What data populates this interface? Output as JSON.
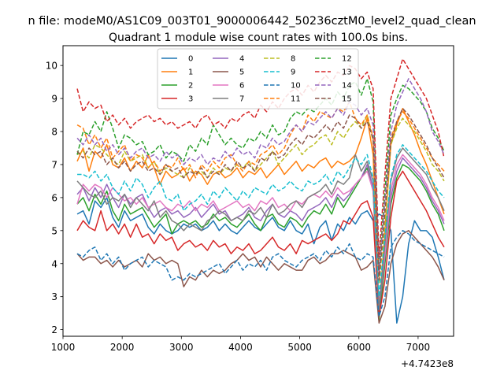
{
  "chart_data": {
    "type": "line",
    "suptitle": "n file: modeM0/AS1C09_003T01_9000006442_50236cztM0_level2_quad_clean",
    "title": "Quadrant 1 module wise count rates with 100.0s bins.",
    "xlabel": "",
    "ylabel": "",
    "x_offset_label": "+4.7423e8",
    "xlim": [
      1000,
      7600
    ],
    "ylim": [
      1.8,
      10.6
    ],
    "x_ticks": [
      1000,
      2000,
      3000,
      4000,
      5000,
      6000,
      7000
    ],
    "x_tick_labels": [
      "1000",
      "2000",
      "3000",
      "4000",
      "5000",
      "6000",
      "7000"
    ],
    "y_ticks": [
      2,
      3,
      4,
      5,
      6,
      7,
      8,
      9,
      10
    ],
    "y_tick_labels": [
      "2",
      "3",
      "4",
      "5",
      "6",
      "7",
      "8",
      "9",
      "10"
    ],
    "grid": false,
    "legend_position": "top-center",
    "legend_columns": 4,
    "x_start": 1240,
    "x_step": 100,
    "series": [
      {
        "name": "0",
        "color": "#1f77b4",
        "dash": "solid",
        "values": [
          5.5,
          5.6,
          5.2,
          5.9,
          5.7,
          6.0,
          5.4,
          5.1,
          5.6,
          5.3,
          5.4,
          5.5,
          5.1,
          4.9,
          5.2,
          5.0,
          4.9,
          5.0,
          5.2,
          5.1,
          5.2,
          5.0,
          5.1,
          5.3,
          5.0,
          5.2,
          5.0,
          4.9,
          5.1,
          5.3,
          5.1,
          5.0,
          5.2,
          5.4,
          5.1,
          5.0,
          5.3,
          5.0,
          4.9,
          5.2,
          4.6,
          5.1,
          5.3,
          4.7,
          5.2,
          5.0,
          5.4,
          5.2,
          5.5,
          5.6,
          5.3,
          5.5,
          5.4,
          5.0,
          2.2,
          3.0,
          4.6,
          5.3,
          5.0,
          5.0,
          4.8,
          4.2,
          3.5
        ]
      },
      {
        "name": "1",
        "color": "#ff7f0e",
        "dash": "solid",
        "values": [
          7.1,
          7.5,
          6.8,
          7.4,
          7.2,
          7.6,
          7.0,
          6.9,
          7.2,
          6.8,
          7.1,
          6.9,
          7.3,
          6.9,
          6.4,
          6.8,
          6.6,
          6.7,
          6.9,
          6.5,
          6.8,
          6.7,
          6.4,
          6.7,
          6.8,
          6.6,
          6.7,
          6.9,
          6.6,
          6.8,
          6.7,
          6.9,
          6.6,
          6.8,
          7.0,
          6.7,
          6.9,
          7.1,
          6.8,
          7.0,
          6.9,
          7.1,
          7.2,
          6.9,
          7.1,
          7.0,
          7.1,
          7.3,
          7.8,
          8.4,
          7.3,
          2.5,
          5.0,
          7.6,
          8.2,
          8.7,
          8.3,
          7.9,
          7.4,
          7.0,
          6.5,
          6.0,
          5.5
        ]
      },
      {
        "name": "2",
        "color": "#2ca02c",
        "dash": "solid",
        "values": [
          5.8,
          6.0,
          5.6,
          6.1,
          5.8,
          6.2,
          5.6,
          5.3,
          5.8,
          5.5,
          5.6,
          5.7,
          5.4,
          5.1,
          5.3,
          5.5,
          4.9,
          5.2,
          5.3,
          5.2,
          5.3,
          5.1,
          5.2,
          5.5,
          5.3,
          5.4,
          5.2,
          5.1,
          5.3,
          5.5,
          5.2,
          5.0,
          5.4,
          5.5,
          5.2,
          5.1,
          5.4,
          5.3,
          5.1,
          5.4,
          5.6,
          5.5,
          5.8,
          5.5,
          6.0,
          5.7,
          6.0,
          6.3,
          6.6,
          6.9,
          6.2,
          2.3,
          4.0,
          5.8,
          6.6,
          7.0,
          6.9,
          6.7,
          6.5,
          6.2,
          5.8,
          5.5,
          5.0
        ]
      },
      {
        "name": "3",
        "color": "#d62728",
        "dash": "solid",
        "values": [
          5.0,
          5.3,
          5.1,
          5.0,
          5.6,
          5.0,
          5.2,
          4.9,
          5.2,
          4.8,
          5.2,
          4.8,
          4.9,
          4.6,
          4.9,
          4.7,
          4.8,
          4.4,
          4.6,
          4.7,
          4.5,
          4.6,
          4.4,
          4.7,
          4.5,
          4.6,
          4.3,
          4.5,
          4.4,
          4.6,
          4.3,
          4.4,
          4.6,
          4.8,
          4.5,
          4.4,
          4.6,
          4.3,
          4.7,
          4.6,
          4.7,
          4.8,
          4.9,
          4.7,
          4.9,
          5.3,
          5.2,
          5.5,
          5.8,
          5.9,
          5.4,
          2.4,
          3.5,
          5.4,
          6.5,
          6.8,
          6.5,
          6.2,
          5.9,
          5.6,
          5.2,
          4.8,
          4.5
        ]
      },
      {
        "name": "4",
        "color": "#9467bd",
        "dash": "solid",
        "values": [
          6.1,
          6.3,
          5.9,
          6.3,
          6.0,
          6.4,
          6.0,
          5.7,
          6.1,
          5.8,
          6.0,
          6.1,
          5.7,
          5.4,
          5.6,
          5.7,
          5.5,
          5.6,
          5.4,
          5.5,
          5.7,
          5.4,
          5.6,
          5.8,
          5.5,
          5.6,
          5.3,
          5.4,
          5.5,
          5.7,
          5.4,
          5.3,
          5.6,
          5.8,
          5.5,
          5.4,
          5.6,
          5.5,
          5.3,
          5.6,
          5.7,
          5.8,
          6.0,
          5.7,
          6.1,
          5.9,
          6.1,
          6.4,
          6.6,
          7.0,
          6.3,
          2.6,
          4.2,
          6.0,
          6.8,
          7.2,
          7.0,
          6.8,
          6.6,
          6.3,
          5.9,
          5.6,
          5.2
        ]
      },
      {
        "name": "5",
        "color": "#8c564b",
        "dash": "solid",
        "values": [
          4.3,
          4.1,
          4.2,
          4.2,
          4.0,
          4.1,
          3.9,
          4.1,
          3.9,
          4.0,
          4.1,
          3.9,
          4.3,
          4.1,
          4.2,
          4.0,
          4.1,
          4.0,
          3.3,
          3.6,
          3.5,
          3.8,
          3.6,
          3.8,
          3.7,
          3.8,
          4.0,
          4.1,
          4.3,
          4.1,
          4.2,
          3.9,
          4.2,
          4.0,
          3.8,
          4.0,
          3.9,
          3.8,
          3.8,
          4.1,
          4.2,
          4.0,
          4.1,
          4.3,
          4.3,
          4.4,
          4.3,
          4.2,
          3.8,
          3.9,
          4.1,
          2.2,
          2.7,
          4.0,
          4.6,
          4.9,
          5.0,
          4.8,
          4.6,
          4.4,
          4.2,
          3.9,
          3.5
        ]
      },
      {
        "name": "6",
        "color": "#e377c2",
        "dash": "solid",
        "values": [
          5.8,
          6.4,
          6.2,
          6.4,
          6.3,
          6.0,
          6.3,
          6.1,
          5.9,
          6.0,
          5.8,
          6.0,
          5.7,
          5.8,
          5.9,
          5.7,
          5.6,
          5.8,
          5.7,
          5.9,
          5.6,
          5.8,
          5.7,
          5.9,
          5.6,
          5.7,
          5.8,
          5.9,
          5.7,
          5.8,
          5.6,
          5.9,
          5.8,
          6.0,
          5.7,
          5.8,
          5.6,
          5.9,
          5.8,
          6.0,
          6.1,
          6.0,
          6.2,
          6.0,
          6.3,
          6.1,
          6.2,
          6.4,
          6.6,
          6.8,
          6.2,
          2.8,
          4.3,
          6.2,
          7.0,
          7.3,
          7.1,
          6.9,
          6.7,
          6.4,
          6.0,
          5.7,
          5.3
        ]
      },
      {
        "name": "7",
        "color": "#7f7f7f",
        "dash": "solid",
        "values": [
          6.5,
          6.3,
          6.1,
          6.0,
          6.2,
          5.8,
          6.0,
          5.9,
          6.1,
          5.7,
          6.0,
          5.8,
          5.6,
          5.9,
          5.4,
          5.6,
          5.3,
          5.2,
          5.0,
          5.2,
          5.1,
          5.0,
          5.3,
          5.4,
          5.6,
          5.5,
          5.3,
          5.4,
          5.3,
          5.6,
          5.5,
          5.7,
          5.4,
          5.8,
          5.5,
          5.6,
          5.8,
          5.9,
          5.7,
          6.0,
          6.1,
          6.2,
          6.4,
          6.1,
          6.5,
          6.4,
          6.6,
          7.3,
          6.8,
          7.1,
          6.5,
          2.6,
          4.6,
          6.5,
          7.2,
          7.5,
          7.3,
          7.1,
          6.9,
          6.7,
          6.3,
          6.0,
          5.6
        ]
      },
      {
        "name": "8",
        "color": "#bcbd22",
        "dash": "dashed",
        "values": [
          7.3,
          7.4,
          7.2,
          7.6,
          7.5,
          7.3,
          7.1,
          7.0,
          7.4,
          7.1,
          7.2,
          7.3,
          6.9,
          7.1,
          6.7,
          6.9,
          6.8,
          6.7,
          6.6,
          6.9,
          6.7,
          6.8,
          6.6,
          6.9,
          6.7,
          6.9,
          6.8,
          7.0,
          6.9,
          7.1,
          6.8,
          7.0,
          7.2,
          7.4,
          7.0,
          7.2,
          7.4,
          7.6,
          7.3,
          7.5,
          7.6,
          7.8,
          7.9,
          7.6,
          8.0,
          7.8,
          8.1,
          8.3,
          8.1,
          8.5,
          7.7,
          3.4,
          5.2,
          7.6,
          8.1,
          8.4,
          8.2,
          8.0,
          7.7,
          7.4,
          7.0,
          6.8,
          6.5
        ]
      },
      {
        "name": "9",
        "color": "#17becf",
        "dash": "dashed",
        "values": [
          6.7,
          6.7,
          6.6,
          6.8,
          6.5,
          6.7,
          6.3,
          6.1,
          6.5,
          6.2,
          6.6,
          6.4,
          6.0,
          6.3,
          6.5,
          6.0,
          5.9,
          6.1,
          5.6,
          5.8,
          5.9,
          6.1,
          5.8,
          6.2,
          6.0,
          6.3,
          6.1,
          5.9,
          6.2,
          6.0,
          6.3,
          6.2,
          6.1,
          6.4,
          6.2,
          6.3,
          6.5,
          6.3,
          6.2,
          6.5,
          6.4,
          6.5,
          6.7,
          6.4,
          6.8,
          6.6,
          6.9,
          7.2,
          7.0,
          7.3,
          6.6,
          3.0,
          4.8,
          6.6,
          7.3,
          7.6,
          7.4,
          7.2,
          7.0,
          6.8,
          6.5,
          6.2,
          6.0
        ]
      },
      {
        "name": "10",
        "color": "#1f77b4",
        "dash": "dashed",
        "values": [
          4.3,
          4.2,
          4.4,
          4.5,
          4.1,
          4.3,
          4.0,
          4.2,
          3.8,
          4.0,
          4.1,
          4.2,
          3.9,
          4.1,
          4.0,
          3.9,
          3.5,
          3.6,
          3.5,
          3.7,
          3.6,
          3.7,
          3.8,
          3.9,
          4.0,
          3.7,
          3.9,
          4.1,
          3.8,
          4.0,
          3.9,
          4.1,
          3.8,
          4.2,
          4.3,
          4.1,
          4.0,
          3.9,
          4.1,
          4.2,
          4.3,
          4.1,
          4.4,
          4.2,
          4.5,
          4.3,
          4.6,
          4.2,
          4.1,
          4.3,
          4.2,
          2.4,
          3.0,
          4.5,
          4.8,
          5.0,
          4.9,
          4.7,
          4.6,
          4.5,
          4.4,
          4.3,
          4.2
        ]
      },
      {
        "name": "11",
        "color": "#ff7f0e",
        "dash": "dashed",
        "values": [
          8.2,
          8.1,
          7.6,
          7.9,
          7.5,
          7.8,
          7.2,
          7.4,
          7.6,
          7.1,
          7.3,
          7.2,
          6.9,
          7.1,
          6.8,
          7.0,
          6.9,
          7.2,
          6.8,
          7.0,
          6.6,
          7.0,
          6.8,
          7.1,
          6.9,
          7.2,
          7.3,
          7.0,
          6.8,
          7.1,
          7.0,
          7.3,
          7.4,
          7.6,
          7.3,
          7.5,
          7.9,
          8.2,
          8.0,
          8.5,
          8.3,
          8.6,
          8.5,
          8.4,
          8.7,
          8.6,
          8.9,
          8.4,
          8.2,
          8.5,
          7.8,
          3.6,
          6.0,
          7.8,
          8.3,
          8.6,
          8.4,
          8.1,
          7.8,
          7.5,
          7.2,
          7.0,
          6.8
        ]
      },
      {
        "name": "12",
        "color": "#2ca02c",
        "dash": "dashed",
        "values": [
          7.3,
          8.0,
          7.9,
          8.3,
          8.0,
          8.6,
          8.1,
          7.5,
          7.9,
          7.8,
          7.6,
          7.7,
          7.3,
          7.4,
          7.6,
          7.2,
          7.4,
          7.3,
          7.1,
          7.6,
          7.4,
          7.8,
          7.6,
          8.2,
          7.9,
          7.6,
          7.8,
          7.6,
          7.5,
          7.8,
          7.7,
          8.0,
          7.8,
          8.2,
          7.9,
          8.0,
          8.4,
          8.6,
          8.5,
          8.7,
          8.6,
          8.8,
          9.0,
          8.8,
          9.2,
          9.0,
          9.4,
          9.5,
          9.1,
          9.6,
          8.9,
          3.8,
          6.2,
          8.5,
          9.0,
          9.4,
          9.3,
          9.1,
          8.9,
          8.6,
          8.1,
          7.8,
          7.4
        ]
      },
      {
        "name": "13",
        "color": "#d62728",
        "dash": "dashed",
        "values": [
          9.3,
          8.6,
          8.9,
          8.7,
          8.8,
          8.3,
          8.5,
          8.2,
          8.4,
          8.1,
          8.3,
          8.4,
          8.5,
          8.3,
          8.4,
          8.2,
          8.3,
          8.1,
          8.2,
          8.3,
          8.1,
          8.4,
          8.5,
          8.2,
          8.3,
          8.1,
          8.4,
          8.3,
          8.5,
          8.6,
          8.4,
          8.8,
          8.6,
          8.9,
          8.7,
          9.0,
          9.2,
          9.3,
          9.1,
          9.4,
          9.2,
          9.5,
          9.7,
          9.5,
          9.8,
          9.7,
          10.0,
          9.9,
          9.6,
          9.8,
          9.3,
          4.2,
          6.7,
          9.0,
          9.6,
          10.2,
          9.9,
          9.6,
          9.3,
          9.0,
          8.5,
          8.0,
          7.2
        ]
      },
      {
        "name": "14",
        "color": "#9467bd",
        "dash": "dashed",
        "values": [
          7.8,
          7.6,
          7.9,
          7.6,
          7.8,
          7.4,
          7.6,
          7.3,
          7.5,
          7.2,
          7.4,
          7.5,
          7.2,
          7.3,
          7.1,
          7.4,
          7.2,
          7.3,
          7.0,
          7.2,
          7.1,
          7.3,
          7.0,
          7.2,
          7.1,
          7.4,
          7.2,
          7.5,
          7.3,
          7.4,
          7.2,
          7.6,
          7.5,
          7.8,
          7.6,
          7.7,
          8.0,
          8.2,
          8.0,
          8.3,
          8.2,
          8.4,
          8.6,
          8.4,
          8.7,
          8.5,
          8.9,
          8.8,
          8.5,
          8.7,
          8.2,
          3.7,
          5.9,
          8.0,
          8.8,
          9.2,
          9.6,
          9.3,
          9.0,
          8.6,
          8.0,
          7.7,
          7.3
        ]
      },
      {
        "name": "15",
        "color": "#8c564b",
        "dash": "dashed",
        "values": [
          7.4,
          7.2,
          7.5,
          7.3,
          7.4,
          7.0,
          7.2,
          6.9,
          7.1,
          6.8,
          7.0,
          7.1,
          6.8,
          6.9,
          6.7,
          7.0,
          6.8,
          6.9,
          6.6,
          6.8,
          6.7,
          6.9,
          6.6,
          6.8,
          6.7,
          7.0,
          6.8,
          7.1,
          6.9,
          7.0,
          6.8,
          7.2,
          7.1,
          7.4,
          7.2,
          7.3,
          7.6,
          7.8,
          7.6,
          7.9,
          7.8,
          8.0,
          8.2,
          8.0,
          8.3,
          8.1,
          8.5,
          8.4,
          8.1,
          8.3,
          7.8,
          3.5,
          5.6,
          7.7,
          8.3,
          8.7,
          8.5,
          8.2,
          7.9,
          7.6,
          7.2,
          6.9,
          6.6
        ]
      }
    ]
  }
}
